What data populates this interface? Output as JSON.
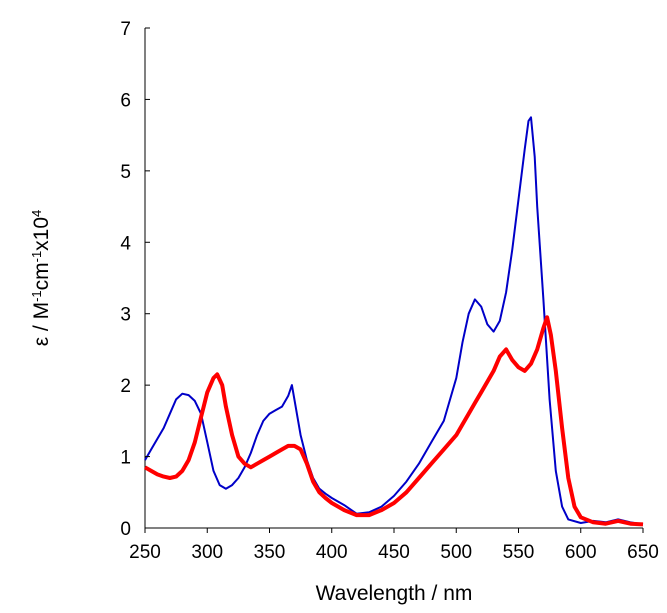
{
  "chart_data": {
    "type": "line",
    "title": "",
    "xlabel": "Wavelength / nm",
    "ylabel_parts": [
      {
        "text": "ε / M",
        "sup": false
      },
      {
        "text": "-1",
        "sup": true
      },
      {
        "text": "cm",
        "sup": false
      },
      {
        "text": "-1",
        "sup": true
      },
      {
        "text": "x10",
        "sup": false
      },
      {
        "text": "4",
        "sup": true
      }
    ],
    "xlim": [
      250,
      650
    ],
    "ylim": [
      0,
      7
    ],
    "xticks": [
      "250",
      "300",
      "350",
      "400",
      "450",
      "500",
      "550",
      "600",
      "650"
    ],
    "yticks": [
      "0",
      "1",
      "2",
      "3",
      "4",
      "5",
      "6",
      "7"
    ],
    "grid": false,
    "legend": "none",
    "series": [
      {
        "color": "#0000c8",
        "line_width": 2,
        "x": [
          250,
          255,
          260,
          265,
          270,
          275,
          280,
          285,
          290,
          295,
          300,
          305,
          310,
          315,
          320,
          325,
          330,
          335,
          340,
          345,
          350,
          355,
          360,
          365,
          368,
          370,
          375,
          380,
          385,
          390,
          395,
          400,
          410,
          420,
          430,
          440,
          450,
          460,
          470,
          480,
          490,
          500,
          505,
          510,
          515,
          520,
          525,
          530,
          535,
          540,
          545,
          550,
          555,
          558,
          560,
          563,
          565,
          570,
          575,
          580,
          585,
          590,
          600,
          610,
          620,
          630,
          640,
          650
        ],
        "y": [
          0.95,
          1.1,
          1.25,
          1.4,
          1.6,
          1.8,
          1.88,
          1.86,
          1.78,
          1.6,
          1.2,
          0.8,
          0.6,
          0.55,
          0.6,
          0.7,
          0.85,
          1.05,
          1.3,
          1.5,
          1.6,
          1.65,
          1.7,
          1.85,
          2.0,
          1.8,
          1.3,
          0.95,
          0.7,
          0.55,
          0.48,
          0.42,
          0.32,
          0.2,
          0.22,
          0.3,
          0.45,
          0.65,
          0.9,
          1.2,
          1.5,
          2.1,
          2.6,
          3.0,
          3.2,
          3.1,
          2.85,
          2.75,
          2.9,
          3.3,
          3.9,
          4.6,
          5.3,
          5.7,
          5.75,
          5.2,
          4.5,
          3.2,
          1.8,
          0.8,
          0.3,
          0.12,
          0.07,
          0.1,
          0.08,
          0.12,
          0.08,
          0.05
        ]
      },
      {
        "color": "#ff0000",
        "line_width": 4,
        "x": [
          250,
          255,
          260,
          265,
          270,
          275,
          280,
          285,
          290,
          295,
          300,
          305,
          308,
          312,
          315,
          320,
          325,
          330,
          335,
          340,
          345,
          350,
          355,
          360,
          365,
          370,
          375,
          380,
          385,
          390,
          395,
          400,
          410,
          420,
          430,
          440,
          450,
          460,
          470,
          480,
          490,
          500,
          505,
          510,
          515,
          520,
          525,
          530,
          535,
          540,
          545,
          550,
          555,
          560,
          565,
          570,
          573,
          576,
          580,
          585,
          590,
          595,
          600,
          610,
          620,
          630,
          640,
          650
        ],
        "y": [
          0.85,
          0.8,
          0.75,
          0.72,
          0.7,
          0.72,
          0.8,
          0.95,
          1.2,
          1.55,
          1.9,
          2.1,
          2.15,
          2.0,
          1.7,
          1.3,
          1.0,
          0.9,
          0.85,
          0.9,
          0.95,
          1.0,
          1.05,
          1.1,
          1.15,
          1.15,
          1.1,
          0.9,
          0.65,
          0.5,
          0.42,
          0.35,
          0.25,
          0.18,
          0.18,
          0.25,
          0.35,
          0.5,
          0.7,
          0.9,
          1.1,
          1.3,
          1.45,
          1.6,
          1.75,
          1.9,
          2.05,
          2.2,
          2.4,
          2.5,
          2.35,
          2.25,
          2.2,
          2.3,
          2.5,
          2.8,
          2.95,
          2.7,
          2.2,
          1.4,
          0.7,
          0.3,
          0.15,
          0.08,
          0.06,
          0.1,
          0.06,
          0.05
        ]
      }
    ]
  }
}
